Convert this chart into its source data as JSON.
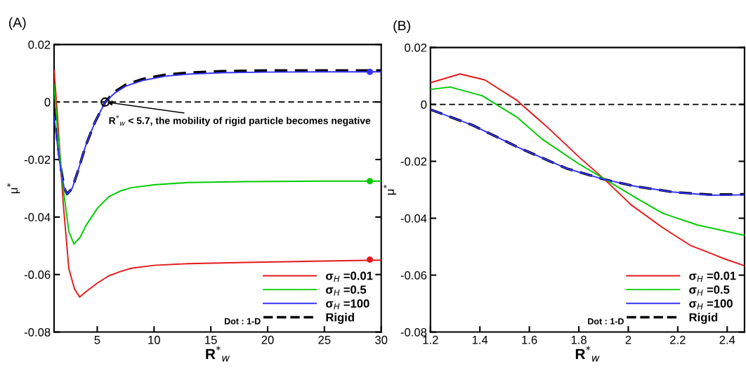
{
  "chart_data": [
    {
      "type": "line",
      "title": "(A)",
      "xlabel": "R$^{*}$$_{w}$",
      "ylabel": "μ$^{*}$",
      "xlim": [
        1.2,
        30
      ],
      "ylim": [
        -0.08,
        0.02
      ],
      "xticks": [
        5,
        10,
        15,
        20,
        25,
        30
      ],
      "yticks": [
        -0.08,
        -0.06,
        -0.04,
        -0.02,
        0,
        0.02
      ],
      "grid": false,
      "legend": "bottom right",
      "marker": "none",
      "ref_lines": [
        {
          "axis": "y",
          "value": 0,
          "color": "#000000",
          "line_style": "dashed"
        }
      ],
      "annotations": [
        {
          "text": "R$^{*}$$_{w}$ < 5.7, the mobility of rigid particle becomes negative",
          "x": 5.7,
          "y": 0
        },
        "Dot : 1-D"
      ],
      "series": [
        {
          "name": "σ$_{H}$ =0.01",
          "color": "#e41a1c",
          "line_style": "solid",
          "x": [
            1.2,
            1.5,
            2,
            2.5,
            3,
            3.45,
            4,
            5,
            6,
            7,
            8,
            10,
            13,
            18,
            25,
            30
          ],
          "values": [
            0.011,
            -0.005,
            -0.035,
            -0.058,
            -0.065,
            -0.0678,
            -0.066,
            -0.063,
            -0.0605,
            -0.059,
            -0.0578,
            -0.0568,
            -0.0562,
            -0.0558,
            -0.0553,
            -0.055
          ]
        },
        {
          "name": "σ$_{H}$ =0.5",
          "color": "#00cc00",
          "line_style": "solid",
          "x": [
            1.2,
            1.5,
            2,
            2.5,
            2.95,
            3.5,
            4,
            5,
            6,
            7,
            8,
            10,
            13,
            18,
            25,
            30
          ],
          "values": [
            0.006,
            -0.01,
            -0.03,
            -0.045,
            -0.0494,
            -0.047,
            -0.043,
            -0.037,
            -0.033,
            -0.031,
            -0.0298,
            -0.0288,
            -0.028,
            -0.0277,
            -0.0275,
            -0.0275
          ]
        },
        {
          "name": "σ$_{H}$ =100",
          "color": "#3333ff",
          "line_style": "solid",
          "x": [
            1.2,
            1.5,
            1.8,
            2.1,
            2.35,
            2.8,
            3.3,
            4,
            4.8,
            5.7,
            6.5,
            7.5,
            9,
            11,
            13,
            16,
            20,
            25,
            30
          ],
          "values": [
            -0.005,
            -0.015,
            -0.024,
            -0.03,
            -0.032,
            -0.03,
            -0.024,
            -0.015,
            -0.007,
            0,
            0.003,
            0.0055,
            0.0075,
            0.009,
            0.0097,
            0.0102,
            0.0104,
            0.0105,
            0.0105
          ]
        },
        {
          "name": "Rigid",
          "color": "#000000",
          "line_style": "dashed",
          "x": [
            1.2,
            1.5,
            1.8,
            2.1,
            2.35,
            2.8,
            3.3,
            4,
            4.8,
            5.7,
            6.5,
            7.5,
            9,
            11,
            13,
            16,
            20,
            25,
            30
          ],
          "values": [
            -0.002,
            -0.014,
            -0.023,
            -0.03,
            -0.032,
            -0.03,
            -0.024,
            -0.015,
            -0.007,
            0,
            0.0035,
            0.006,
            0.008,
            0.0095,
            0.0102,
            0.0107,
            0.011,
            0.011,
            0.011
          ]
        },
        {
          "type": "scatter",
          "marker": "circle",
          "color": "#e41a1c",
          "x": [
            29
          ],
          "values": [
            -0.0548
          ]
        },
        {
          "type": "scatter",
          "marker": "circle",
          "color": "#00cc00",
          "x": [
            29
          ],
          "values": [
            -0.0275
          ]
        },
        {
          "type": "scatter",
          "marker": "circle",
          "color": "#3333ff",
          "x": [
            29
          ],
          "values": [
            0.0105
          ]
        }
      ]
    },
    {
      "type": "line",
      "title": "(B)",
      "xlabel": "R$^{*}$$_{w}$",
      "ylabel": "μ$^{*}$",
      "xlim": [
        1.2,
        2.47
      ],
      "ylim": [
        -0.08,
        0.02
      ],
      "xticks": [
        1.2,
        1.4,
        1.6,
        1.8,
        2,
        2.2,
        2.4
      ],
      "yticks": [
        -0.08,
        -0.06,
        -0.04,
        -0.02,
        0,
        0.02
      ],
      "grid": false,
      "legend": "bottom right",
      "marker": "none",
      "ref_lines": [
        {
          "axis": "y",
          "value": 0,
          "color": "#000000",
          "line_style": "dashed"
        }
      ],
      "annotations": [
        "Dot : 1-D"
      ],
      "series": [
        {
          "name": "σ$_{H}$ =0.01",
          "color": "#e41a1c",
          "line_style": "solid",
          "x": [
            1.2,
            1.32,
            1.42,
            1.55,
            1.674,
            1.806,
            1.9,
            2.01,
            2.137,
            2.25,
            2.39,
            2.47
          ],
          "values": [
            0.0076,
            0.0107,
            0.0086,
            0.0014,
            -0.0081,
            -0.0189,
            -0.026,
            -0.0352,
            -0.0432,
            -0.0495,
            -0.0543,
            -0.0567
          ]
        },
        {
          "name": "σ$_{H}$ =0.5",
          "color": "#00cc00",
          "line_style": "solid",
          "x": [
            1.2,
            1.28,
            1.41,
            1.466,
            1.55,
            1.65,
            1.8,
            1.9,
            2.03,
            2.14,
            2.28,
            2.47
          ],
          "values": [
            0.0053,
            0.0061,
            0.003,
            0,
            -0.0045,
            -0.0121,
            -0.0209,
            -0.026,
            -0.0328,
            -0.0383,
            -0.0424,
            -0.046
          ]
        },
        {
          "name": "σ$_{H}$ =100",
          "color": "#3333ff",
          "line_style": "solid",
          "x": [
            1.2,
            1.37,
            1.56,
            1.75,
            1.9,
            2.03,
            2.18,
            2.33,
            2.47
          ],
          "values": [
            -0.0018,
            -0.0073,
            -0.0153,
            -0.0225,
            -0.0263,
            -0.0288,
            -0.0308,
            -0.0319,
            -0.0318
          ]
        },
        {
          "name": "Rigid",
          "color": "#000000",
          "line_style": "dashed",
          "x": [
            1.2,
            1.37,
            1.56,
            1.75,
            1.9,
            2.03,
            2.18,
            2.33,
            2.47
          ],
          "values": [
            -0.0018,
            -0.0073,
            -0.0153,
            -0.0225,
            -0.0263,
            -0.0288,
            -0.0308,
            -0.0317,
            -0.0316
          ]
        }
      ]
    }
  ]
}
